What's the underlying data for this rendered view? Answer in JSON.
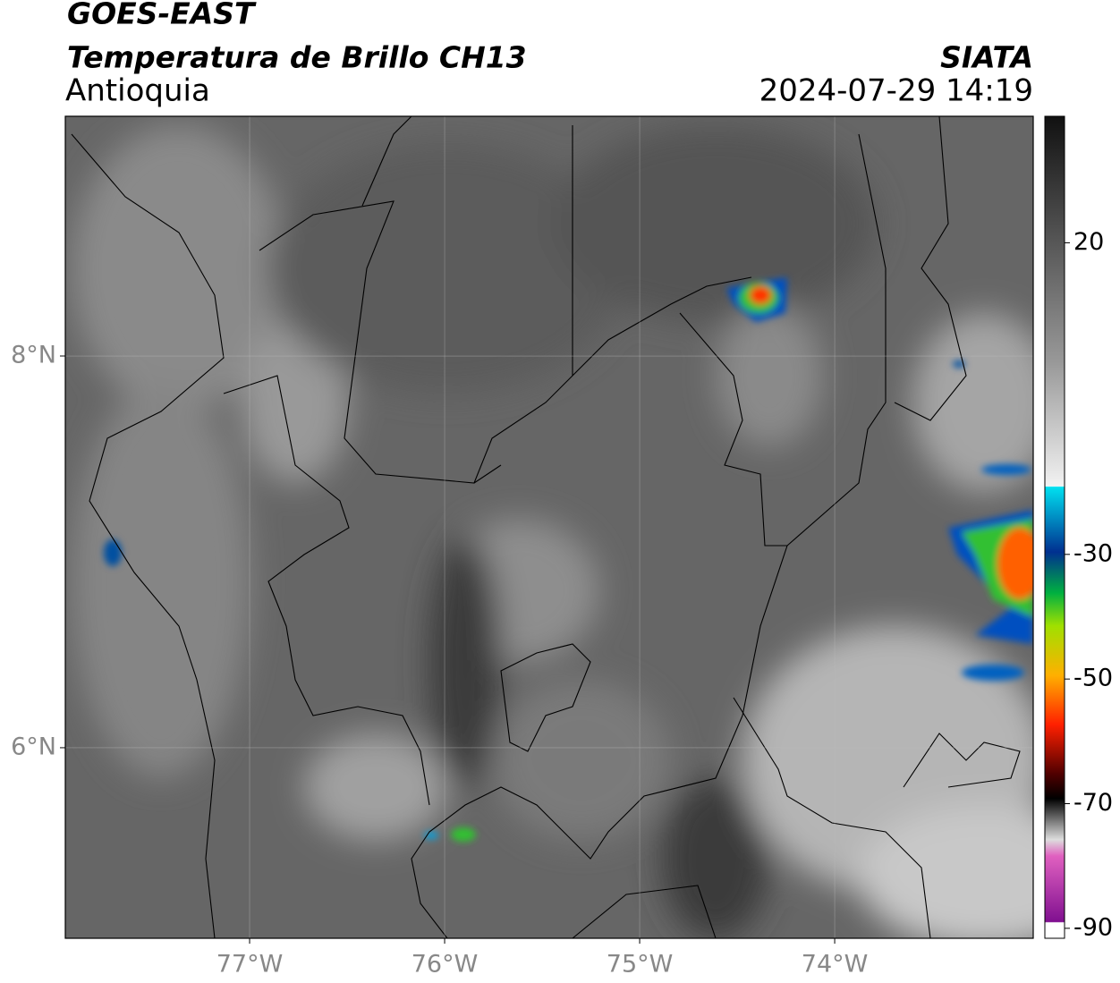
{
  "header": {
    "title": "GOES-EAST",
    "subtitle": "Temperatura de Brillo CH13",
    "region": "Antioquia",
    "source": "SIATA",
    "datetime": "2024-07-29 14:19"
  },
  "map": {
    "xlim": [
      -77.945,
      -72.982
    ],
    "ylim": [
      5.027,
      9.224
    ],
    "xticks": [
      {
        "value": -77,
        "label": "77°W"
      },
      {
        "value": -76,
        "label": "76°W"
      },
      {
        "value": -75,
        "label": "75°W"
      },
      {
        "value": -74,
        "label": "74°W"
      }
    ],
    "yticks": [
      {
        "value": 8,
        "label": "8°N"
      },
      {
        "value": 6,
        "label": "6°N"
      }
    ]
  },
  "colorbar": {
    "lim": [
      -91.6,
      40.3
    ],
    "ticks": [
      20,
      -30,
      -50,
      -70,
      -90
    ]
  }
}
